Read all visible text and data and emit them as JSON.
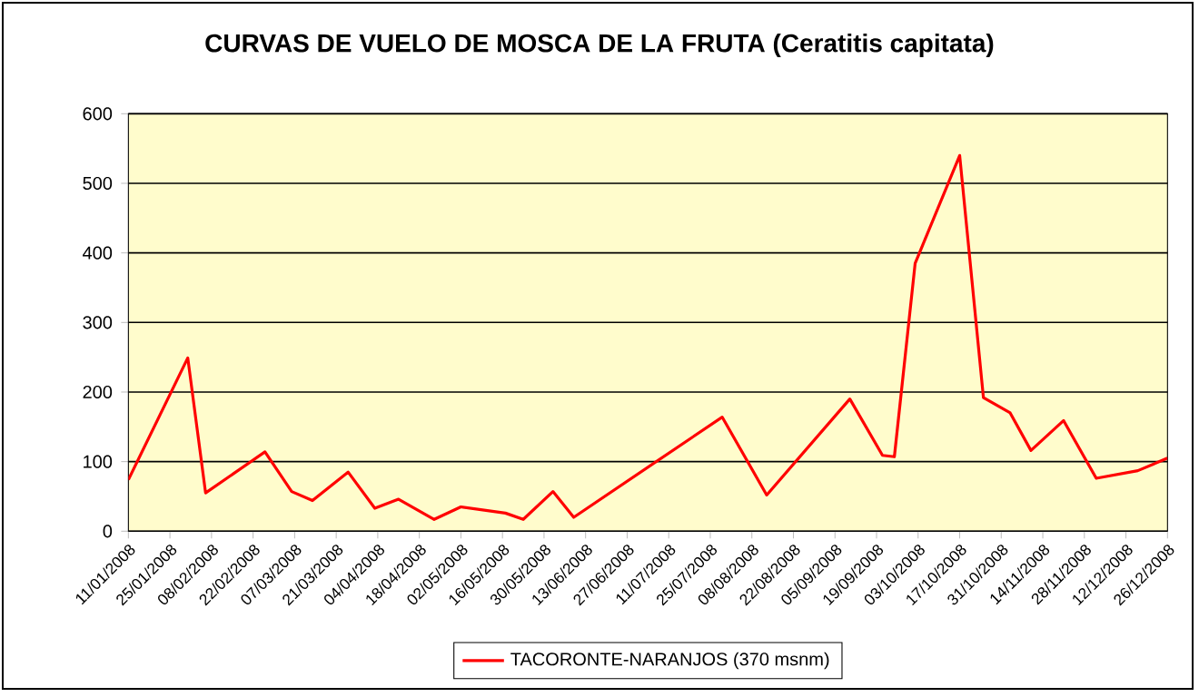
{
  "chart_data": {
    "type": "line",
    "title": "CURVAS DE VUELO DE MOSCA DE LA FRUTA (Ceratitis capitata)",
    "x": [
      "2008-01-11",
      "2008-01-31",
      "2008-02-06",
      "2008-02-26",
      "2008-03-06",
      "2008-03-13",
      "2008-03-25",
      "2008-04-03",
      "2008-04-11",
      "2008-04-23",
      "2008-05-02",
      "2008-05-17",
      "2008-05-23",
      "2008-06-02",
      "2008-06-09",
      "2008-07-29",
      "2008-08-13",
      "2008-09-10",
      "2008-09-21",
      "2008-09-25",
      "2008-10-02",
      "2008-10-17",
      "2008-10-25",
      "2008-11-03",
      "2008-11-10",
      "2008-11-21",
      "2008-12-02",
      "2008-12-16",
      "2008-12-26"
    ],
    "series": [
      {
        "name": "TACORONTE-NARANJOS (370 msnm)",
        "color": "#ff0000",
        "values": [
          74,
          249,
          55,
          114,
          57,
          44,
          85,
          33,
          46,
          17,
          35,
          26,
          17,
          57,
          20,
          164,
          52,
          190,
          109,
          107,
          385,
          540,
          192,
          170,
          116,
          159,
          76,
          87,
          105
        ]
      }
    ],
    "xlim": [
      "2008-01-11",
      "2008-12-26"
    ],
    "xticks": [
      {
        "value": "2008-01-11",
        "label": "11/01/2008"
      },
      {
        "value": "2008-01-25",
        "label": "25/01/2008"
      },
      {
        "value": "2008-02-08",
        "label": "08/02/2008"
      },
      {
        "value": "2008-02-22",
        "label": "22/02/2008"
      },
      {
        "value": "2008-03-07",
        "label": "07/03/2008"
      },
      {
        "value": "2008-03-21",
        "label": "21/03/2008"
      },
      {
        "value": "2008-04-04",
        "label": "04/04/2008"
      },
      {
        "value": "2008-04-18",
        "label": "18/04/2008"
      },
      {
        "value": "2008-05-02",
        "label": "02/05/2008"
      },
      {
        "value": "2008-05-16",
        "label": "16/05/2008"
      },
      {
        "value": "2008-05-30",
        "label": "30/05/2008"
      },
      {
        "value": "2008-06-13",
        "label": "13/06/2008"
      },
      {
        "value": "2008-06-27",
        "label": "27/06/2008"
      },
      {
        "value": "2008-07-11",
        "label": "11/07/2008"
      },
      {
        "value": "2008-07-25",
        "label": "25/07/2008"
      },
      {
        "value": "2008-08-08",
        "label": "08/08/2008"
      },
      {
        "value": "2008-08-22",
        "label": "22/08/2008"
      },
      {
        "value": "2008-09-05",
        "label": "05/09/2008"
      },
      {
        "value": "2008-09-19",
        "label": "19/09/2008"
      },
      {
        "value": "2008-10-03",
        "label": "03/10/2008"
      },
      {
        "value": "2008-10-17",
        "label": "17/10/2008"
      },
      {
        "value": "2008-10-31",
        "label": "31/10/2008"
      },
      {
        "value": "2008-11-14",
        "label": "14/11/2008"
      },
      {
        "value": "2008-11-28",
        "label": "28/11/2008"
      },
      {
        "value": "2008-12-12",
        "label": "12/12/2008"
      },
      {
        "value": "2008-12-26",
        "label": "26/12/2008"
      }
    ],
    "ylim": [
      0,
      600
    ],
    "yticks": [
      0,
      100,
      200,
      300,
      400,
      500,
      600
    ],
    "grid": "y",
    "legend": "bottom",
    "marker": "none",
    "line_style": "solid"
  }
}
